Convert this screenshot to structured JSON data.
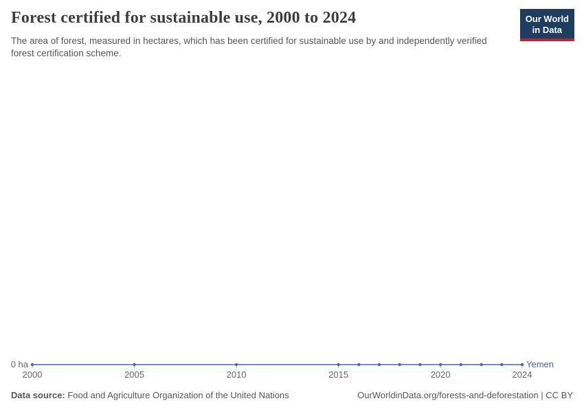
{
  "header": {
    "title": "Forest certified for sustainable use, 2000 to 2024",
    "subtitle": "The area of forest, measured in hectares, which has been certified for sustainable use by and independently verified forest certification scheme.",
    "logo": {
      "line1": "Our World",
      "line2": "in Data",
      "bg_color": "#1d3d63",
      "stripe_color": "#c1232e"
    }
  },
  "chart_data": {
    "type": "line",
    "title": "Forest certified for sustainable use, 2000 to 2024",
    "unit": "ha",
    "x": [
      2000,
      2005,
      2010,
      2015,
      2016,
      2017,
      2018,
      2019,
      2020,
      2021,
      2022,
      2023,
      2024
    ],
    "series": [
      {
        "name": "Yemen",
        "color": "#4068b0",
        "values": [
          0,
          0,
          0,
          0,
          0,
          0,
          0,
          0,
          0,
          0,
          0,
          0,
          0
        ]
      }
    ],
    "xlabel": "",
    "ylabel": "",
    "x_axis": {
      "range": [
        2000,
        2024
      ],
      "ticks": [
        2000,
        2005,
        2010,
        2015,
        2020,
        2024
      ]
    },
    "y_axis": {
      "min": 0,
      "max": 0,
      "tick_label": "0 ha"
    },
    "legend_position": "right-of-line",
    "grid": false
  },
  "footer": {
    "source_label": "Data source:",
    "source_text": " Food and Agriculture Organization of the United Nations",
    "credit": "OurWorldinData.org/forests-and-deforestation | CC BY"
  }
}
